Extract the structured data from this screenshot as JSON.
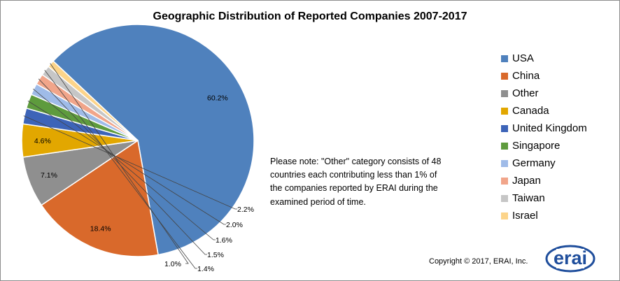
{
  "chart_data": {
    "type": "pie",
    "title": "Geographic Distribution of Reported Companies 2007-2017",
    "slices": [
      {
        "name": "USA",
        "value": 60.2,
        "label": "60.2%",
        "color": "#4f81bd"
      },
      {
        "name": "China",
        "value": 18.4,
        "label": "18.4%",
        "color": "#d9692b"
      },
      {
        "name": "Other",
        "value": 7.1,
        "label": "7.1%",
        "color": "#8f8f8f"
      },
      {
        "name": "Canada",
        "value": 4.6,
        "label": "4.6%",
        "color": "#e2a700"
      },
      {
        "name": "United Kingdom",
        "value": 2.2,
        "label": "2.2%",
        "color": "#3d64b8"
      },
      {
        "name": "Singapore",
        "value": 2.0,
        "label": "2.0%",
        "color": "#5e9b3d"
      },
      {
        "name": "Germany",
        "value": 1.6,
        "label": "1.6%",
        "color": "#9fbbe8"
      },
      {
        "name": "Japan",
        "value": 1.5,
        "label": "1.5%",
        "color": "#f1a58a"
      },
      {
        "name": "Taiwan",
        "value": 1.4,
        "label": "1.4%",
        "color": "#c6c6c6"
      },
      {
        "name": "Israel",
        "value": 1.0,
        "label": "1.0%",
        "color": "#fcd48a"
      }
    ],
    "legend_position": "right"
  },
  "note": "Please note: \"Other\" category consists of 48 countries each contributing less than 1% of the companies reported by ERAI during the examined period of time.",
  "copyright": "Copyright © 2017, ERAI, Inc.",
  "logo_text": "erai",
  "colors": {
    "logo": "#1f4e9c"
  }
}
